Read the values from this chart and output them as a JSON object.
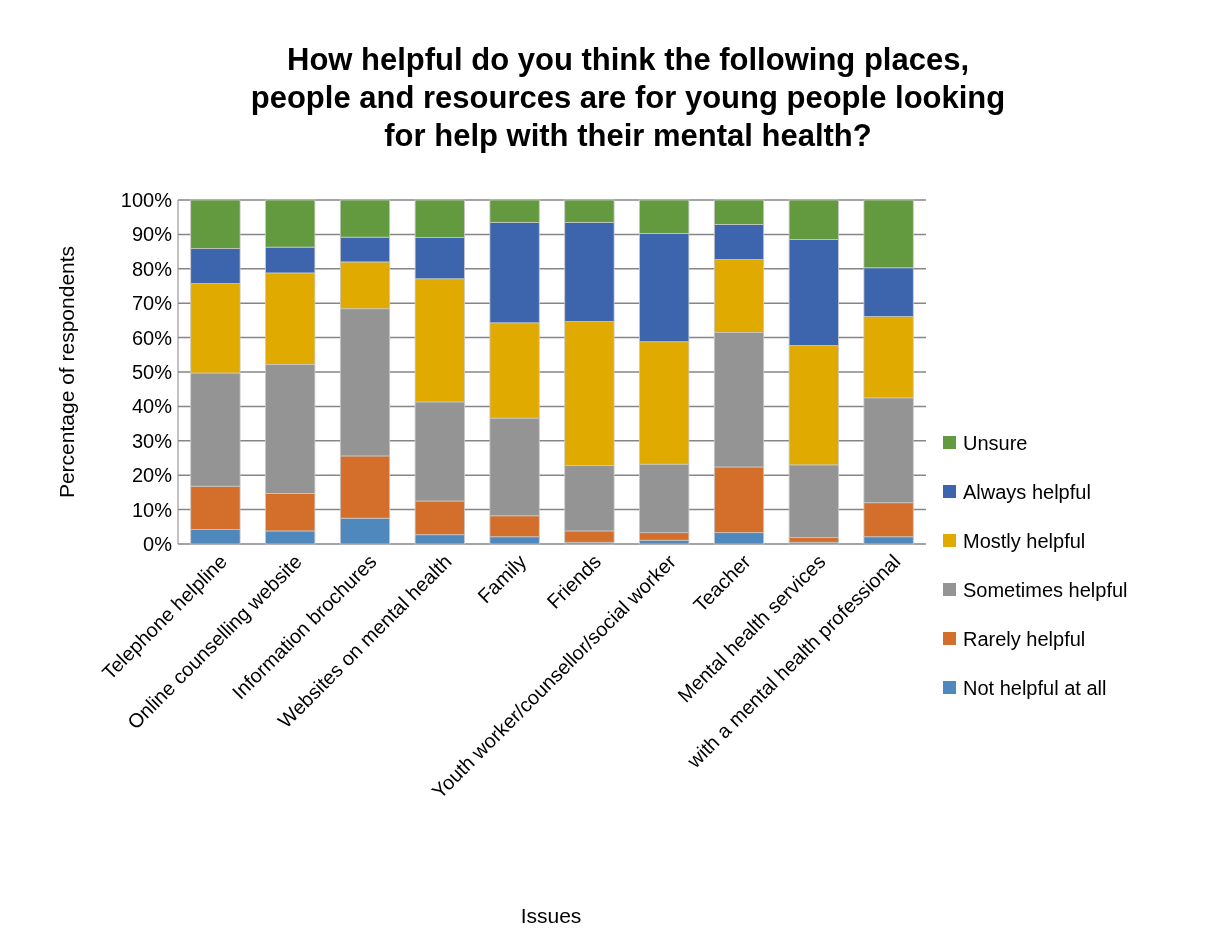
{
  "chart_data": {
    "type": "bar",
    "stacked": true,
    "title": "How helpful do you think the following places,\npeople and resources are for young people looking\nfor help with their mental health?",
    "xlabel": "Issues",
    "ylabel": "Percentage of respondents",
    "categories": [
      "Telephone helpline",
      "Online counselling website",
      "Information brochures",
      "Websites on mental health",
      "Family",
      "Friends",
      "Youth worker/counsellor/social worker",
      "Teacher",
      "Mental health services",
      "with a mental health professional"
    ],
    "series": [
      {
        "name": "Not helpful at all",
        "color": "#4f88bd",
        "values": [
          4.2,
          3.8,
          7.5,
          2.7,
          2.1,
          0.5,
          1.1,
          3.3,
          0.5,
          2.1
        ]
      },
      {
        "name": "Rarely helpful",
        "color": "#d36f2b",
        "values": [
          12.6,
          10.9,
          18.1,
          9.8,
          6.1,
          3.3,
          2.2,
          19.1,
          1.4,
          9.9
        ]
      },
      {
        "name": "Sometimes helpful",
        "color": "#949494",
        "values": [
          32.9,
          37.5,
          42.8,
          28.8,
          28.4,
          19.0,
          19.9,
          39.1,
          21.1,
          30.5
        ]
      },
      {
        "name": "Mostly helpful",
        "color": "#e1aa00",
        "values": [
          26.0,
          26.6,
          13.6,
          35.8,
          27.7,
          41.9,
          35.6,
          21.2,
          34.7,
          23.6
        ]
      },
      {
        "name": "Always helpful",
        "color": "#3c65ad",
        "values": [
          10.2,
          7.5,
          7.2,
          12.0,
          29.2,
          28.8,
          31.5,
          10.2,
          30.8,
          14.2
        ]
      },
      {
        "name": "Unsure",
        "color": "#63993f",
        "values": [
          14.1,
          13.7,
          10.8,
          10.9,
          6.5,
          6.5,
          9.7,
          7.1,
          11.5,
          19.7
        ]
      }
    ],
    "ylim": [
      0,
      100
    ],
    "yticks": [
      {
        "value": 0,
        "label": "0%"
      },
      {
        "value": 10,
        "label": "10%"
      },
      {
        "value": 20,
        "label": "20%"
      },
      {
        "value": 30,
        "label": "30%"
      },
      {
        "value": 40,
        "label": "40%"
      },
      {
        "value": 50,
        "label": "50%"
      },
      {
        "value": 60,
        "label": "60%"
      },
      {
        "value": 70,
        "label": "70%"
      },
      {
        "value": 80,
        "label": "80%"
      },
      {
        "value": 90,
        "label": "90%"
      },
      {
        "value": 100,
        "label": "100%"
      }
    ],
    "grid": true,
    "legend": "right"
  }
}
